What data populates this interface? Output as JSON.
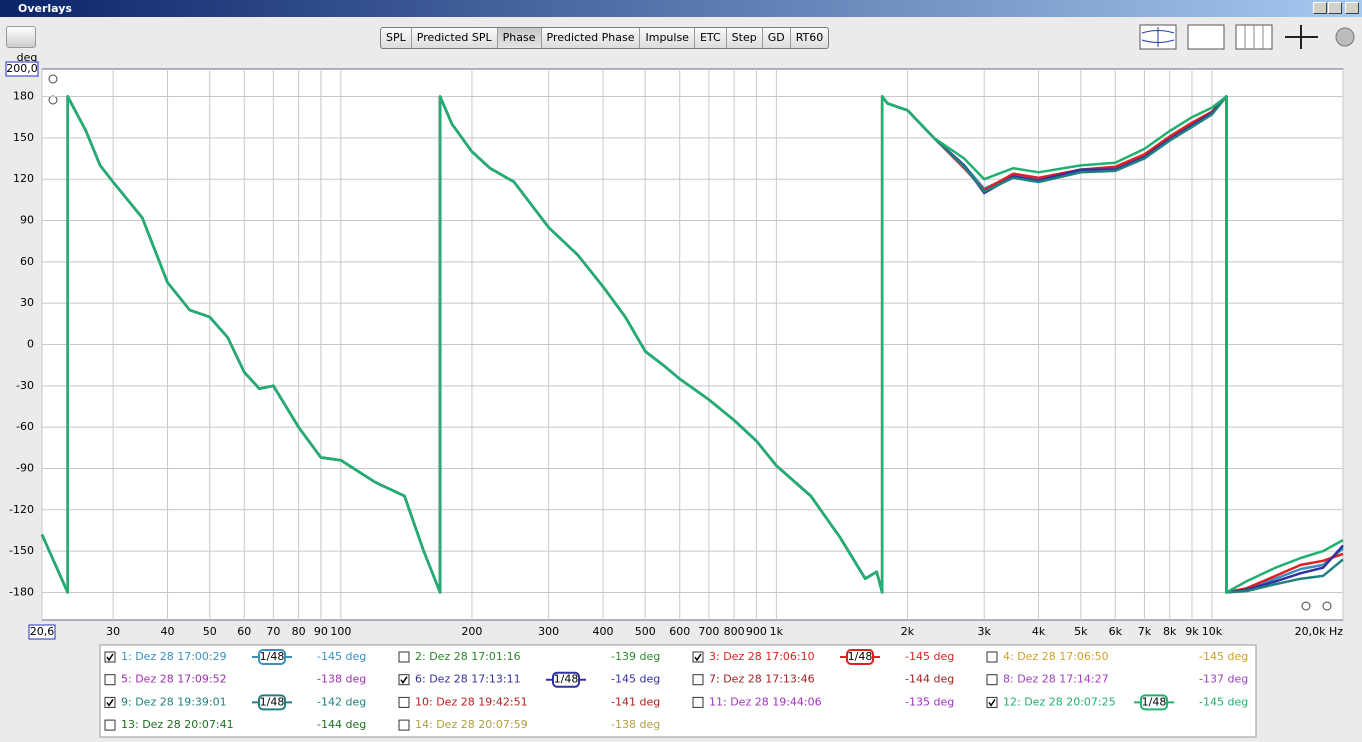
{
  "window": {
    "title": "Overlays"
  },
  "tabs": [
    "SPL",
    "Predicted SPL",
    "Phase",
    "Predicted Phase",
    "Impulse",
    "ETC",
    "Step",
    "GD",
    "RT60"
  ],
  "active_tab": 2,
  "chart_data": {
    "type": "line",
    "ylabel": "deg",
    "xscale": "log",
    "grid": true,
    "xlim": [
      20.6,
      20000
    ],
    "ylim": [
      -200,
      200
    ],
    "xticks": [
      {
        "value": 20.6,
        "label": "20,6"
      },
      30,
      40,
      50,
      60,
      70,
      80,
      90,
      100,
      200,
      300,
      400,
      500,
      600,
      700,
      800,
      900,
      {
        "value": 1000,
        "label": "1k"
      },
      {
        "value": 2000,
        "label": "2k"
      },
      {
        "value": 3000,
        "label": "3k"
      },
      {
        "value": 4000,
        "label": "4k"
      },
      {
        "value": 5000,
        "label": "5k"
      },
      {
        "value": 6000,
        "label": "6k"
      },
      {
        "value": 7000,
        "label": "7k"
      },
      {
        "value": 8000,
        "label": "8k"
      },
      {
        "value": 9000,
        "label": "9k"
      },
      {
        "value": 10000,
        "label": "10k"
      },
      {
        "value": 20000,
        "label": "20,0k Hz"
      }
    ],
    "yticks": [
      -180,
      -150,
      -120,
      -90,
      -60,
      -30,
      0,
      30,
      60,
      90,
      120,
      150,
      180,
      {
        "value": 200,
        "label": "200,0"
      }
    ],
    "x": [
      20.6,
      23.6,
      23.6,
      26,
      28,
      30,
      35,
      40,
      45,
      50,
      55,
      60,
      65,
      70,
      80,
      90,
      100,
      120,
      140,
      155,
      169,
      169,
      180,
      200,
      220,
      250,
      300,
      350,
      400,
      450,
      500,
      550,
      600,
      700,
      800,
      900,
      1000,
      1200,
      1400,
      1600,
      1700,
      1750,
      1750,
      1800,
      2000,
      2300,
      2700,
      3000,
      3500,
      4000,
      5000,
      6000,
      7000,
      8000,
      9000,
      10000,
      10800,
      10800,
      12000,
      14000,
      16000,
      18000,
      20000
    ],
    "series": [
      {
        "name": "1: Dez 28 17:00:29",
        "color": "#3a8fc0",
        "checked": true,
        "smoothing": "1/48",
        "readout": "-145 deg",
        "values": [
          -138,
          -180,
          180,
          155,
          130,
          118,
          92,
          45,
          25,
          20,
          5,
          -20,
          -32,
          -30,
          -60,
          -82,
          -84,
          -100,
          -110,
          -150,
          -180,
          180,
          160,
          140,
          128,
          118,
          85,
          65,
          42,
          20,
          -5,
          -15,
          -25,
          -40,
          -55,
          -70,
          -88,
          -110,
          -140,
          -170,
          -165,
          -180,
          180,
          175,
          170,
          150,
          130,
          113,
          123,
          120,
          126,
          128,
          137,
          150,
          160,
          168,
          180,
          -180,
          -178,
          -170,
          -163,
          -160,
          -148
        ]
      },
      {
        "name": "2: Dez 28 17:01:16",
        "color": "#2a8a2a",
        "checked": false,
        "readout": "-139 deg"
      },
      {
        "name": "3: Dez 28 17:06:10",
        "color": "#e02020",
        "checked": true,
        "smoothing": "1/48",
        "readout": "-145 deg",
        "values": [
          -138,
          -180,
          180,
          155,
          130,
          118,
          92,
          45,
          25,
          20,
          5,
          -20,
          -32,
          -30,
          -60,
          -82,
          -84,
          -100,
          -110,
          -150,
          -180,
          180,
          160,
          140,
          128,
          118,
          85,
          65,
          42,
          20,
          -5,
          -15,
          -25,
          -40,
          -55,
          -70,
          -88,
          -110,
          -140,
          -170,
          -165,
          -180,
          180,
          175,
          170,
          150,
          128,
          112,
          124,
          121,
          127,
          129,
          138,
          151,
          161,
          169,
          180,
          -180,
          -177,
          -168,
          -160,
          -157,
          -152
        ]
      },
      {
        "name": "4: Dez 28 17:06:50",
        "color": "#d0a020",
        "checked": false,
        "readout": "-145 deg"
      },
      {
        "name": "5: Dez 28 17:09:52",
        "color": "#a030b0",
        "checked": false,
        "readout": "-138 deg"
      },
      {
        "name": "6: Dez 28 17:13:11",
        "color": "#3030a0",
        "checked": true,
        "smoothing": "1/48",
        "readout": "-145 deg",
        "values": [
          -138,
          -180,
          180,
          155,
          130,
          118,
          92,
          45,
          25,
          20,
          5,
          -20,
          -32,
          -30,
          -60,
          -82,
          -84,
          -100,
          -110,
          -150,
          -180,
          180,
          160,
          140,
          128,
          118,
          85,
          65,
          42,
          20,
          -5,
          -15,
          -25,
          -40,
          -55,
          -70,
          -88,
          -110,
          -140,
          -170,
          -165,
          -180,
          180,
          175,
          170,
          150,
          130,
          110,
          122,
          119,
          127,
          127,
          136,
          149,
          159,
          168,
          180,
          -180,
          -178,
          -172,
          -166,
          -162,
          -146
        ]
      },
      {
        "name": "7: Dez 28 17:13:46",
        "color": "#a02020",
        "checked": false,
        "readout": "-144 deg"
      },
      {
        "name": "8: Dez 28 17:14:27",
        "color": "#a040c0",
        "checked": false,
        "readout": "-137 deg"
      },
      {
        "name": "9: Dez 28 19:39:01",
        "color": "#208080",
        "checked": true,
        "smoothing": "1/48",
        "readout": "-142 deg",
        "values": [
          -138,
          -180,
          180,
          155,
          130,
          118,
          92,
          45,
          25,
          20,
          5,
          -20,
          -32,
          -30,
          -60,
          -82,
          -84,
          -100,
          -110,
          -150,
          -180,
          180,
          160,
          140,
          128,
          118,
          85,
          65,
          42,
          20,
          -5,
          -15,
          -25,
          -40,
          -55,
          -70,
          -88,
          -110,
          -140,
          -170,
          -165,
          -180,
          180,
          175,
          170,
          150,
          129,
          111,
          121,
          118,
          125,
          126,
          135,
          148,
          158,
          167,
          180,
          -180,
          -179,
          -174,
          -170,
          -168,
          -156
        ]
      },
      {
        "name": "10: Dez 28 19:42:51",
        "color": "#b02020",
        "checked": false,
        "readout": "-141 deg"
      },
      {
        "name": "11: Dez 28 19:44:06",
        "color": "#a030c0",
        "checked": false,
        "readout": "-135 deg"
      },
      {
        "name": "12: Dez 28 20:07:25",
        "color": "#20b070",
        "checked": true,
        "smoothing": "1/48",
        "readout": "-145 deg",
        "values": [
          -138,
          -180,
          180,
          155,
          130,
          118,
          92,
          45,
          25,
          20,
          5,
          -20,
          -32,
          -30,
          -60,
          -82,
          -84,
          -100,
          -110,
          -150,
          -180,
          180,
          160,
          140,
          128,
          118,
          85,
          65,
          42,
          20,
          -5,
          -15,
          -25,
          -40,
          -55,
          -70,
          -88,
          -110,
          -140,
          -170,
          -165,
          -180,
          180,
          175,
          170,
          150,
          135,
          120,
          128,
          125,
          130,
          132,
          142,
          155,
          165,
          172,
          180,
          -180,
          -172,
          -162,
          -155,
          -150,
          -142
        ]
      },
      {
        "name": "13: Dez 28 20:07:41",
        "color": "#207020",
        "checked": false,
        "readout": "-144 deg"
      },
      {
        "name": "14: Dez 28 20:07:59",
        "color": "#b0a040",
        "checked": false,
        "readout": "-138 deg"
      }
    ]
  }
}
